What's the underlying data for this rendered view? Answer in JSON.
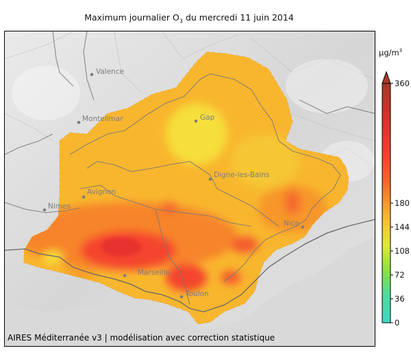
{
  "title": {
    "main": "Maximum journalier O",
    "subscript": "3",
    "rest": " du mercredi 11 juin 2014"
  },
  "credit": "AIRES Méditerranée v3 | modélisation avec correction statistique",
  "unit": {
    "base": "µg/m",
    "sup": "3"
  },
  "colorbar": {
    "ticks": [
      "0",
      "36",
      "72",
      "108",
      "144",
      "180",
      "360"
    ],
    "colors_low_to_high": [
      "#3fd8c4",
      "#66e07a",
      "#a9e63a",
      "#f3e93a",
      "#f8b62e",
      "#f7842c",
      "#f5452e",
      "#d8322a",
      "#a83a2a"
    ]
  },
  "cities": [
    {
      "name": "Valence"
    },
    {
      "name": "Montelimar"
    },
    {
      "name": "Gap"
    },
    {
      "name": "Digne-les-Bains"
    },
    {
      "name": "Avignon"
    },
    {
      "name": "Nimes"
    },
    {
      "name": "Nice"
    },
    {
      "name": "Marseille"
    },
    {
      "name": "Toulon"
    }
  ]
}
